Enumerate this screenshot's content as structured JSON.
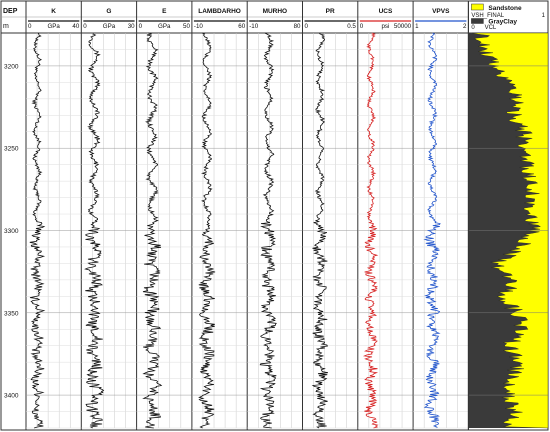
{
  "chart_data": {
    "type": "well-log",
    "depth": {
      "header": "DEP",
      "unit": "m",
      "ylim": [
        3180,
        3420
      ],
      "ticks": [
        3200,
        3250,
        3300,
        3350,
        3400
      ]
    },
    "tracks": [
      {
        "name": "K",
        "unit": "GPa",
        "min": 0,
        "max": 40,
        "color": "#111111",
        "base": 8,
        "amp": 3
      },
      {
        "name": "G",
        "unit": "GPa",
        "min": 0,
        "max": 30,
        "color": "#111111",
        "base": 7,
        "amp": 3
      },
      {
        "name": "E",
        "unit": "GPa",
        "min": 0,
        "max": 50,
        "color": "#111111",
        "base": 14,
        "amp": 5
      },
      {
        "name": "LAMBDARHO",
        "unit": "",
        "min": -10,
        "max": 60,
        "color": "#111111",
        "base": 9,
        "amp": 6
      },
      {
        "name": "MURHO",
        "unit": "",
        "min": -10,
        "max": 80,
        "color": "#111111",
        "base": 25,
        "amp": 8
      },
      {
        "name": "PR",
        "unit": "",
        "min": 0,
        "max": 0.5,
        "color": "#111111",
        "base": 0.16,
        "amp": 0.04
      },
      {
        "name": "UCS",
        "unit": "psi",
        "min": 0,
        "max": 50000,
        "color": "#d62020",
        "base": 12000,
        "amp": 3500
      },
      {
        "name": "VPVS",
        "unit": "",
        "min": 1,
        "max": 2,
        "color": "#2255cc",
        "base": 1.35,
        "amp": 0.08
      }
    ],
    "lithology_track": {
      "legend": [
        {
          "label": "Sandstone",
          "color": "#ffff00"
        },
        {
          "label": "GrayClay",
          "color": "#3a3a3a"
        }
      ],
      "curves": [
        {
          "name": "VSH_FINAL",
          "min": 0,
          "max": 1
        },
        {
          "name": "VCL",
          "unit": "V/V",
          "min": 0,
          "max": 1
        }
      ],
      "vsh_profile": [
        [
          3180,
          0.15
        ],
        [
          3190,
          0.22
        ],
        [
          3200,
          0.3
        ],
        [
          3210,
          0.55
        ],
        [
          3220,
          0.62
        ],
        [
          3230,
          0.58
        ],
        [
          3240,
          0.7
        ],
        [
          3250,
          0.68
        ],
        [
          3260,
          0.74
        ],
        [
          3270,
          0.76
        ],
        [
          3280,
          0.8
        ],
        [
          3290,
          0.78
        ],
        [
          3300,
          0.82
        ],
        [
          3310,
          0.66
        ],
        [
          3320,
          0.35
        ],
        [
          3330,
          0.55
        ],
        [
          3340,
          0.45
        ],
        [
          3350,
          0.6
        ],
        [
          3360,
          0.7
        ],
        [
          3370,
          0.5
        ],
        [
          3380,
          0.62
        ],
        [
          3390,
          0.55
        ],
        [
          3400,
          0.5
        ],
        [
          3410,
          0.58
        ],
        [
          3420,
          0.5
        ]
      ]
    },
    "grid": true
  }
}
